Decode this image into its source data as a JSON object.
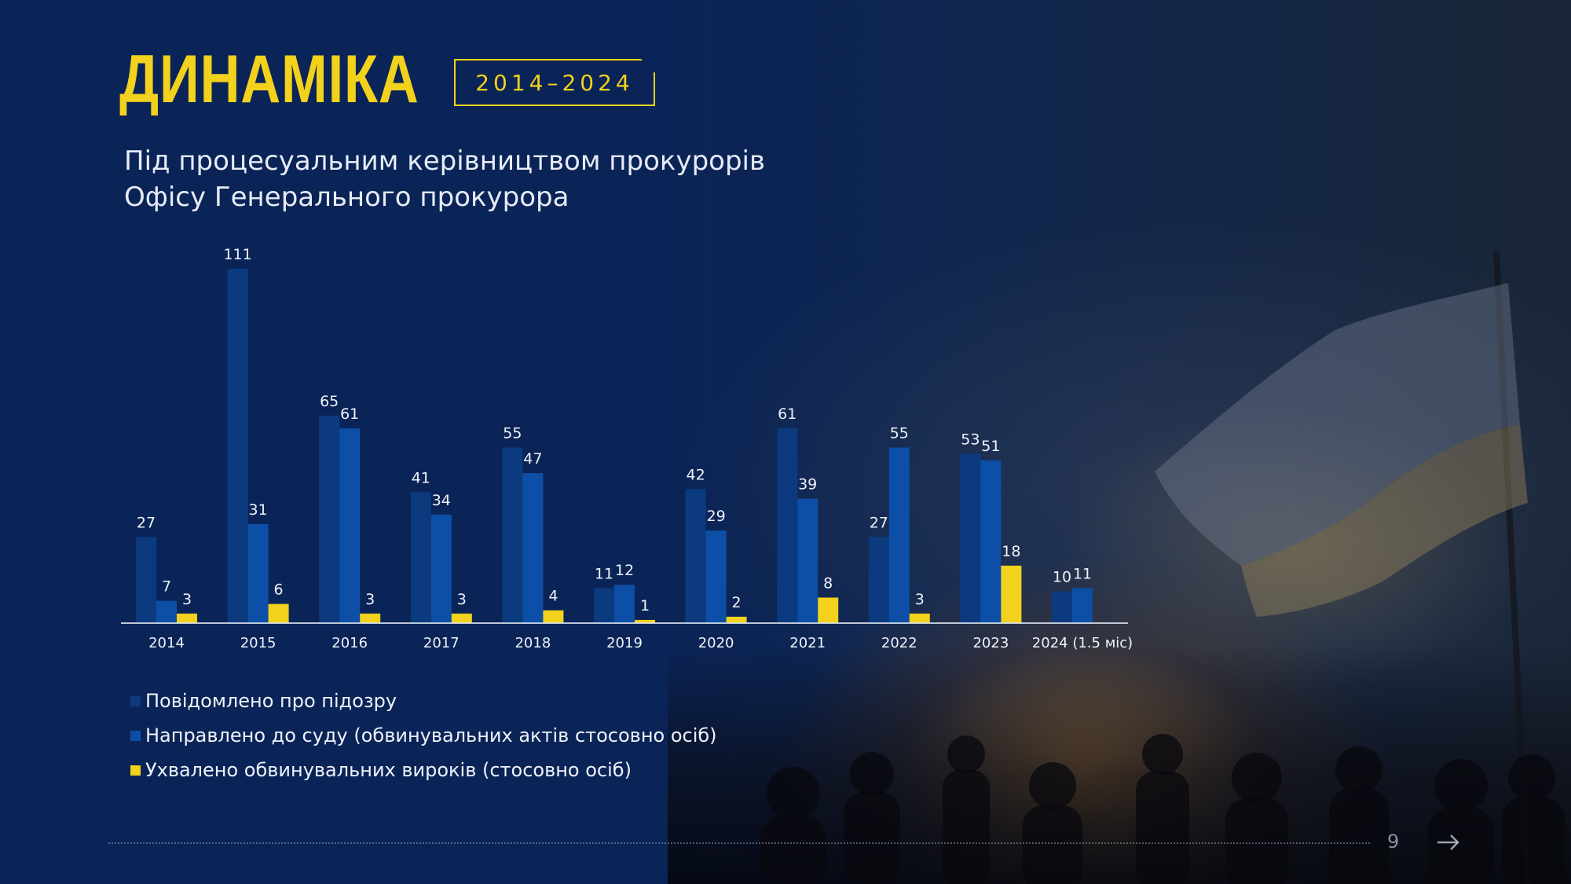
{
  "header": {
    "title": "ДИНАМІКА",
    "period": "2014–2024",
    "subtitle_line1": "Під процесуальним керівництвом прокурорів",
    "subtitle_line2": "Офісу Генерального прокурора"
  },
  "footer": {
    "page_number": "9",
    "next_icon": "arrow-right-icon"
  },
  "colors": {
    "title": "#f2d21c",
    "series_suspicion": "#0b3a7e",
    "series_court": "#0d4ea6",
    "series_verdict": "#f2d21c"
  },
  "chart_data": {
    "type": "bar",
    "categories": [
      "2014",
      "2015",
      "2016",
      "2017",
      "2018",
      "2019",
      "2020",
      "2021",
      "2022",
      "2023",
      "2024 (1.5 міс)"
    ],
    "series": [
      {
        "name": "Повідомлено про підозру",
        "values": [
          27,
          111,
          65,
          41,
          55,
          11,
          42,
          61,
          27,
          53,
          10
        ]
      },
      {
        "name": "Направлено до суду (обвинувальних актів стосовно осіб)",
        "values": [
          7,
          31,
          61,
          34,
          47,
          12,
          29,
          39,
          55,
          51,
          11
        ]
      },
      {
        "name": "Ухвалено обвинувальних вироків (стосовно осіб)",
        "values": [
          3,
          6,
          3,
          3,
          4,
          1,
          2,
          8,
          3,
          18,
          null
        ]
      }
    ],
    "ylim": [
      0,
      111
    ],
    "grid": false,
    "legend_position": "bottom-left"
  }
}
